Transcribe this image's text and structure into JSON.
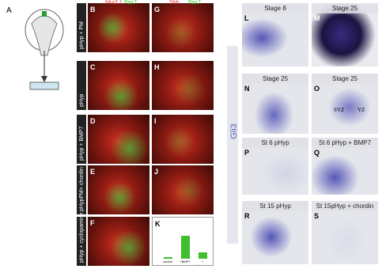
{
  "panel_a": {
    "letter": "A"
  },
  "fluor": {
    "headers": [
      {
        "red": "Nkx2.1",
        "green": "Pax7"
      },
      {
        "red": "Shh",
        "green": "Pax7"
      }
    ],
    "rows": [
      {
        "label": "pHyp + PM",
        "panels": [
          "B",
          "G"
        ]
      },
      {
        "label": "pHyp",
        "panels": [
          "C",
          "H"
        ]
      },
      {
        "label": "pHyp + BMP7",
        "panels": [
          "D",
          "I"
        ]
      },
      {
        "label": "pHypPM+ chordin",
        "panels": [
          "E",
          "J"
        ]
      },
      {
        "label": "pHyp + cyclopamine",
        "panels": [
          "F"
        ]
      }
    ],
    "chart": {
      "type": "bar",
      "letter": "K",
      "categories": [
        "control",
        "+BMP7",
        "+ cyclopamine"
      ],
      "values": [
        0.3,
        5.5,
        1.5
      ],
      "ylim": [
        0,
        8
      ],
      "color": "#3fbf2f"
    }
  },
  "ish": {
    "label": "Gli3",
    "panels": [
      {
        "letter": "L",
        "title": "Stage 8"
      },
      {
        "letter": "M",
        "title": "Stage 25"
      },
      {
        "letter": "N",
        "title": "Stage 25"
      },
      {
        "letter": "O",
        "title": "Stage 25",
        "notes": [
          "SVZ",
          "VZ"
        ]
      },
      {
        "letter": "P",
        "title": "St 6 pHyp"
      },
      {
        "letter": "Q",
        "title": "St 6 pHyp + BMP7"
      },
      {
        "letter": "R",
        "title": "St 15 pHyp"
      },
      {
        "letter": "S",
        "title": "St 15pHyp + chordin"
      }
    ]
  }
}
